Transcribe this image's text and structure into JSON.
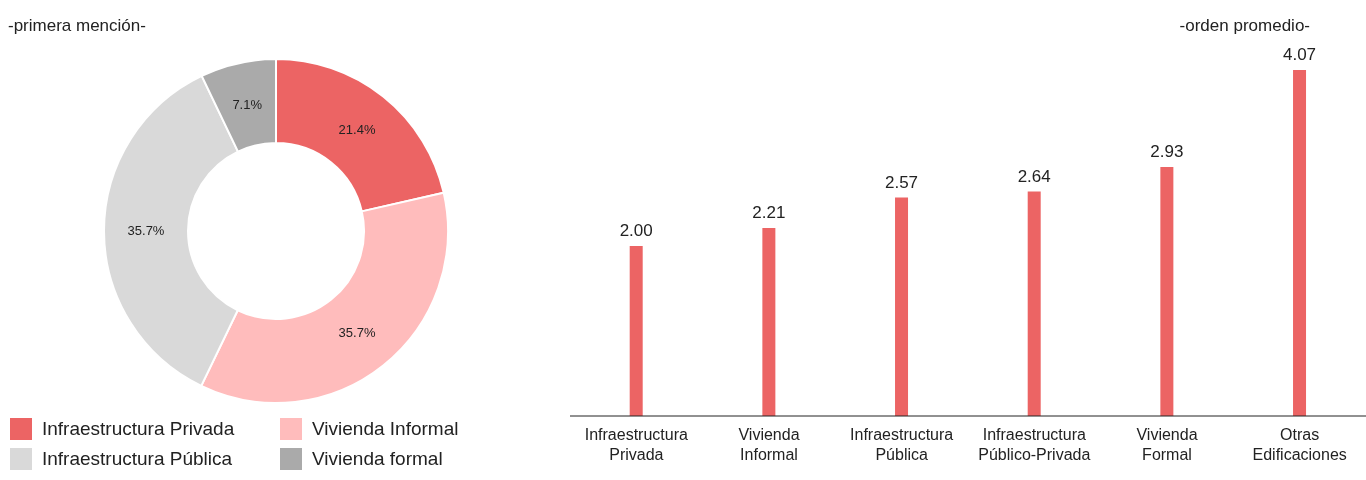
{
  "chart_data": [
    {
      "type": "donut",
      "title": "-primera mención-",
      "categories": [
        "Infraestructura Privada",
        "Vivienda Informal",
        "Infraestructura Pública",
        "Vivienda formal"
      ],
      "values": [
        21.4,
        35.7,
        35.7,
        7.1
      ],
      "colors": [
        "#ec6464",
        "#ffbcbc",
        "#d9d9d9",
        "#aaaaaa"
      ],
      "value_labels": [
        "21.4%",
        "35.7%",
        "35.7%",
        "7.1%"
      ],
      "legend": "bottom"
    },
    {
      "type": "bar",
      "title": "-orden promedio-",
      "categories": [
        "Infraestructura Privada",
        "Vivienda Informal",
        "Infraestructura Pública",
        "Infraestructura Público-Privada",
        "Vivienda Formal",
        "Otras Edificaciones"
      ],
      "values": [
        2.0,
        2.21,
        2.57,
        2.64,
        2.93,
        4.07
      ],
      "color": "#ec6464",
      "value_labels": [
        "2.00",
        "2.21",
        "2.57",
        "2.64",
        "2.93",
        "4.07"
      ],
      "tick_labels": "x"
    }
  ]
}
